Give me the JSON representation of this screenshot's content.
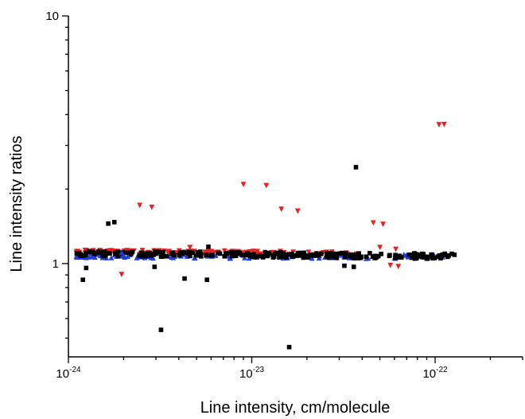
{
  "chart_data": {
    "type": "scatter",
    "xlabel": "Line intensity, cm/molecule",
    "ylabel": "Line intensity ratios",
    "xscale": "log",
    "yscale": "log",
    "xlim": [
      1e-24,
      3e-22
    ],
    "ylim": [
      0.42,
      10
    ],
    "grid": false,
    "legend": "none",
    "x_ticks": [
      {
        "base": "10",
        "exp": "-24"
      },
      {
        "base": "10",
        "exp": "-23"
      },
      {
        "base": "10",
        "exp": "-22"
      }
    ],
    "y_ticks": [
      "1",
      "10"
    ],
    "series": [
      {
        "marker": "square",
        "color": "#000000",
        "band": {
          "x_from": 1.1e-24,
          "x_to": 1.3e-22,
          "y_from": 1.1,
          "y_to": 1.07,
          "jitter": 0.025
        },
        "points": [
          [
            1.65e-24,
            1.45
          ],
          [
            1.78e-24,
            1.47
          ],
          [
            5.8e-24,
            1.17
          ],
          [
            3.7e-23,
            2.45
          ],
          [
            1.2e-24,
            0.86
          ],
          [
            1.25e-24,
            0.96
          ],
          [
            2.95e-24,
            0.97
          ],
          [
            4.3e-24,
            0.87
          ],
          [
            5.7e-24,
            0.86
          ],
          [
            3.2e-24,
            0.54
          ],
          [
            1.6e-23,
            0.46
          ],
          [
            3.2e-23,
            0.98
          ],
          [
            3.6e-23,
            0.97
          ]
        ]
      },
      {
        "marker": "triangle-up",
        "color": "#1f3fe0",
        "band": {
          "x_from": 1.1e-24,
          "x_to": 1.15e-22,
          "y_from": 1.07,
          "y_to": 1.06,
          "jitter": 0.02
        },
        "points": [
          [
            1.95e-24,
            1.1
          ]
        ]
      },
      {
        "marker": "triangle-down",
        "color": "#e82020",
        "band": {
          "x_from": 1.1e-24,
          "x_to": 3.8e-23,
          "y_from": 1.12,
          "y_to": 1.1,
          "jitter": 0.02
        },
        "points": [
          [
            2.45e-24,
            1.73
          ],
          [
            2.85e-24,
            1.7
          ],
          [
            9e-24,
            2.1
          ],
          [
            1.2e-23,
            2.08
          ],
          [
            1.45e-23,
            1.67
          ],
          [
            1.78e-23,
            1.64
          ],
          [
            4.6e-23,
            1.47
          ],
          [
            5.2e-23,
            1.45
          ],
          [
            5e-23,
            1.17
          ],
          [
            6.1e-23,
            1.15
          ],
          [
            5.7e-23,
            0.99
          ],
          [
            6.3e-23,
            0.98
          ],
          [
            1.95e-24,
            0.91
          ],
          [
            4.6e-24,
            1.17
          ],
          [
            1.05e-22,
            3.66
          ],
          [
            1.12e-22,
            3.67
          ]
        ]
      }
    ]
  }
}
